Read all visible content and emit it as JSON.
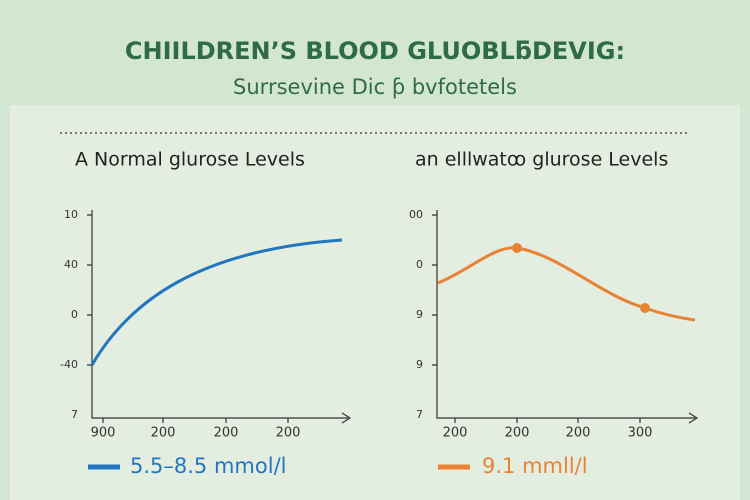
{
  "header": {
    "title": "CHIILDREN’S BLOOD GLUOBLƃDEVIG:",
    "subtitle": "Surrsevine Dic ƥ bvfotetels"
  },
  "panels": [
    {
      "title": "A Normal glurose Levels",
      "y_labels": [
        "10",
        "40",
        "0",
        "-40",
        "7"
      ],
      "x_labels": [
        "900",
        "200",
        "200",
        "200"
      ],
      "legend": "5.5–8.5 mmol/l"
    },
    {
      "title": "an elllwatꝏ glurose Levels",
      "y_labels": [
        "00",
        "0",
        "9",
        "9",
        "7"
      ],
      "x_labels": [
        "200",
        "200",
        "200",
        "300"
      ],
      "legend": "9.1 mmll/l"
    }
  ]
}
